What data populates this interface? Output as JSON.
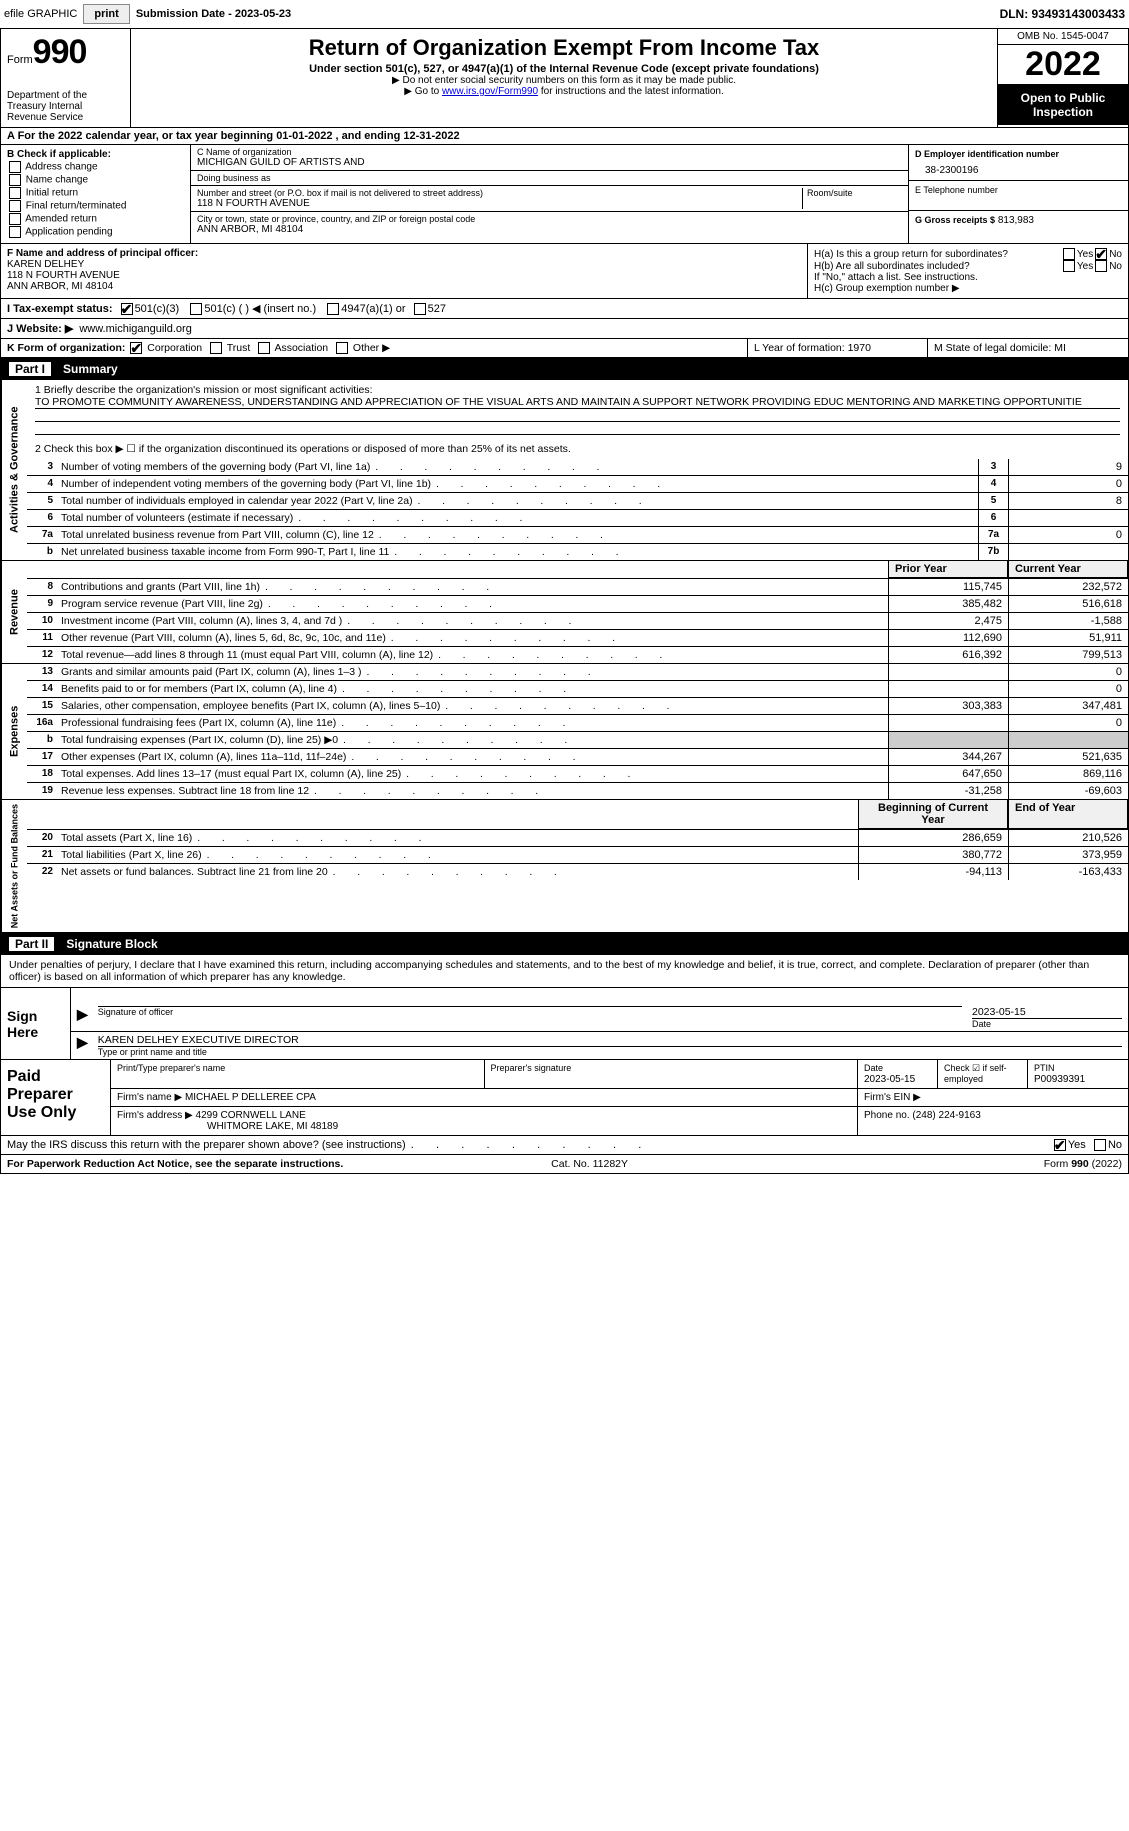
{
  "topbar": {
    "efile": "efile GRAPHIC",
    "print": "print",
    "submission": "Submission Date - 2023-05-23",
    "dln": "DLN: 93493143003433"
  },
  "header": {
    "form": "Form",
    "number": "990",
    "dept": "Department of the Treasury Internal Revenue Service",
    "title": "Return of Organization Exempt From Income Tax",
    "sub1": "Under section 501(c), 527, or 4947(a)(1) of the Internal Revenue Code (except private foundations)",
    "sub2": "▶ Do not enter social security numbers on this form as it may be made public.",
    "sub3_pre": "▶ Go to ",
    "sub3_link": "www.irs.gov/Form990",
    "sub3_post": " for instructions and the latest information.",
    "omb": "OMB No. 1545-0047",
    "year": "2022",
    "open": "Open to Public Inspection"
  },
  "row_a": "A For the 2022 calendar year, or tax year beginning 01-01-2022   , and ending 12-31-2022",
  "col_b": {
    "title": "B Check if applicable:",
    "opts": [
      "Address change",
      "Name change",
      "Initial return",
      "Final return/terminated",
      "Amended return",
      "Application pending"
    ]
  },
  "col_c": {
    "name_lbl": "C Name of organization",
    "name": "MICHIGAN GUILD OF ARTISTS AND",
    "dba_lbl": "Doing business as",
    "dba": "",
    "street_lbl": "Number and street (or P.O. box if mail is not delivered to street address)",
    "street": "118 N FOURTH AVENUE",
    "room_lbl": "Room/suite",
    "city_lbl": "City or town, state or province, country, and ZIP or foreign postal code",
    "city": "ANN ARBOR, MI  48104"
  },
  "col_d": {
    "ein_lbl": "D Employer identification number",
    "ein": "38-2300196",
    "phone_lbl": "E Telephone number",
    "phone": "",
    "gross_lbl": "G Gross receipts $",
    "gross": "813,983"
  },
  "col_f": {
    "lbl": "F Name and address of principal officer:",
    "name": "KAREN DELHEY",
    "street": "118 N FOURTH AVENUE",
    "city": "ANN ARBOR, MI  48104"
  },
  "col_h": {
    "ha": "H(a)  Is this a group return for subordinates?",
    "hb": "H(b)  Are all subordinates included?",
    "hnote": "If \"No,\" attach a list. See instructions.",
    "hc": "H(c)  Group exemption number ▶",
    "yes": "Yes",
    "no": "No"
  },
  "row_i": {
    "lbl": "I   Tax-exempt status:",
    "o1": "501(c)(3)",
    "o2": "501(c) (  ) ◀ (insert no.)",
    "o3": "4947(a)(1) or",
    "o4": "527"
  },
  "row_j": {
    "lbl": "J   Website: ▶",
    "val": "www.michiganguild.org"
  },
  "row_k": {
    "lbl": "K Form of organization:",
    "opts": [
      "Corporation",
      "Trust",
      "Association",
      "Other ▶"
    ],
    "l": "L Year of formation: 1970",
    "m": "M State of legal domicile: MI"
  },
  "part1": {
    "num": "Part I",
    "title": "Summary"
  },
  "summary": {
    "q1": "1   Briefly describe the organization's mission or most significant activities:",
    "mission": "TO PROMOTE COMMUNITY AWARENESS, UNDERSTANDING AND APPRECIATION OF THE VISUAL ARTS AND MAINTAIN A SUPPORT NETWORK PROVIDING EDUC MENTORING AND MARKETING OPPORTUNITIE",
    "q2": "2   Check this box ▶ ☐ if the organization discontinued its operations or disposed of more than 25% of its net assets."
  },
  "sections": {
    "s1": "Activities & Governance",
    "s2": "Revenue",
    "s3": "Expenses",
    "s4": "Net Assets or Fund Balances"
  },
  "lines_gov": [
    {
      "n": "3",
      "d": "Number of voting members of the governing body (Part VI, line 1a)",
      "b": "3",
      "v": "9"
    },
    {
      "n": "4",
      "d": "Number of independent voting members of the governing body (Part VI, line 1b)",
      "b": "4",
      "v": "0"
    },
    {
      "n": "5",
      "d": "Total number of individuals employed in calendar year 2022 (Part V, line 2a)",
      "b": "5",
      "v": "8"
    },
    {
      "n": "6",
      "d": "Total number of volunteers (estimate if necessary)",
      "b": "6",
      "v": ""
    },
    {
      "n": "7a",
      "d": "Total unrelated business revenue from Part VIII, column (C), line 12",
      "b": "7a",
      "v": "0"
    },
    {
      "n": "b",
      "d": "Net unrelated business taxable income from Form 990-T, Part I, line 11",
      "b": "7b",
      "v": ""
    }
  ],
  "col_hdr": {
    "prior": "Prior Year",
    "current": "Current Year"
  },
  "lines_rev": [
    {
      "n": "8",
      "d": "Contributions and grants (Part VIII, line 1h)",
      "p": "115,745",
      "c": "232,572"
    },
    {
      "n": "9",
      "d": "Program service revenue (Part VIII, line 2g)",
      "p": "385,482",
      "c": "516,618"
    },
    {
      "n": "10",
      "d": "Investment income (Part VIII, column (A), lines 3, 4, and 7d )",
      "p": "2,475",
      "c": "-1,588"
    },
    {
      "n": "11",
      "d": "Other revenue (Part VIII, column (A), lines 5, 6d, 8c, 9c, 10c, and 11e)",
      "p": "112,690",
      "c": "51,911"
    },
    {
      "n": "12",
      "d": "Total revenue—add lines 8 through 11 (must equal Part VIII, column (A), line 12)",
      "p": "616,392",
      "c": "799,513"
    }
  ],
  "lines_exp": [
    {
      "n": "13",
      "d": "Grants and similar amounts paid (Part IX, column (A), lines 1–3 )",
      "p": "",
      "c": "0"
    },
    {
      "n": "14",
      "d": "Benefits paid to or for members (Part IX, column (A), line 4)",
      "p": "",
      "c": "0"
    },
    {
      "n": "15",
      "d": "Salaries, other compensation, employee benefits (Part IX, column (A), lines 5–10)",
      "p": "303,383",
      "c": "347,481"
    },
    {
      "n": "16a",
      "d": "Professional fundraising fees (Part IX, column (A), line 11e)",
      "p": "",
      "c": "0"
    },
    {
      "n": "b",
      "d": "Total fundraising expenses (Part IX, column (D), line 25) ▶0",
      "p": "SHADE",
      "c": "SHADE"
    },
    {
      "n": "17",
      "d": "Other expenses (Part IX, column (A), lines 11a–11d, 11f–24e)",
      "p": "344,267",
      "c": "521,635"
    },
    {
      "n": "18",
      "d": "Total expenses. Add lines 13–17 (must equal Part IX, column (A), line 25)",
      "p": "647,650",
      "c": "869,116"
    },
    {
      "n": "19",
      "d": "Revenue less expenses. Subtract line 18 from line 12",
      "p": "-31,258",
      "c": "-69,603"
    }
  ],
  "col_hdr2": {
    "begin": "Beginning of Current Year",
    "end": "End of Year"
  },
  "lines_net": [
    {
      "n": "20",
      "d": "Total assets (Part X, line 16)",
      "p": "286,659",
      "c": "210,526"
    },
    {
      "n": "21",
      "d": "Total liabilities (Part X, line 26)",
      "p": "380,772",
      "c": "373,959"
    },
    {
      "n": "22",
      "d": "Net assets or fund balances. Subtract line 21 from line 20",
      "p": "-94,113",
      "c": "-163,433"
    }
  ],
  "part2": {
    "num": "Part II",
    "title": "Signature Block"
  },
  "sig": {
    "decl": "Under penalties of perjury, I declare that I have examined this return, including accompanying schedules and statements, and to the best of my knowledge and belief, it is true, correct, and complete. Declaration of preparer (other than officer) is based on all information of which preparer has any knowledge.",
    "sign_here": "Sign Here",
    "sig_officer": "Signature of officer",
    "date": "2023-05-15",
    "name": "KAREN DELHEY EXECUTIVE DIRECTOR",
    "name_lbl": "Type or print name and title"
  },
  "prep": {
    "title": "Paid Preparer Use Only",
    "h1": "Print/Type preparer's name",
    "h2": "Preparer's signature",
    "h3": "Date",
    "h3v": "2023-05-15",
    "h4": "Check ☑ if self-employed",
    "h5": "PTIN",
    "h5v": "P00939391",
    "firm_lbl": "Firm's name    ▶",
    "firm": "MICHAEL P DELLEREE CPA",
    "ein_lbl": "Firm's EIN ▶",
    "addr_lbl": "Firm's address ▶",
    "addr1": "4299 CORNWELL LANE",
    "addr2": "WHITMORE LAKE, MI  48189",
    "phone_lbl": "Phone no.",
    "phone": "(248) 224-9163"
  },
  "footer": {
    "q": "May the IRS discuss this return with the preparer shown above? (see instructions)",
    "yes": "Yes",
    "no": "No",
    "pra": "For Paperwork Reduction Act Notice, see the separate instructions.",
    "cat": "Cat. No. 11282Y",
    "form": "Form 990 (2022)"
  }
}
